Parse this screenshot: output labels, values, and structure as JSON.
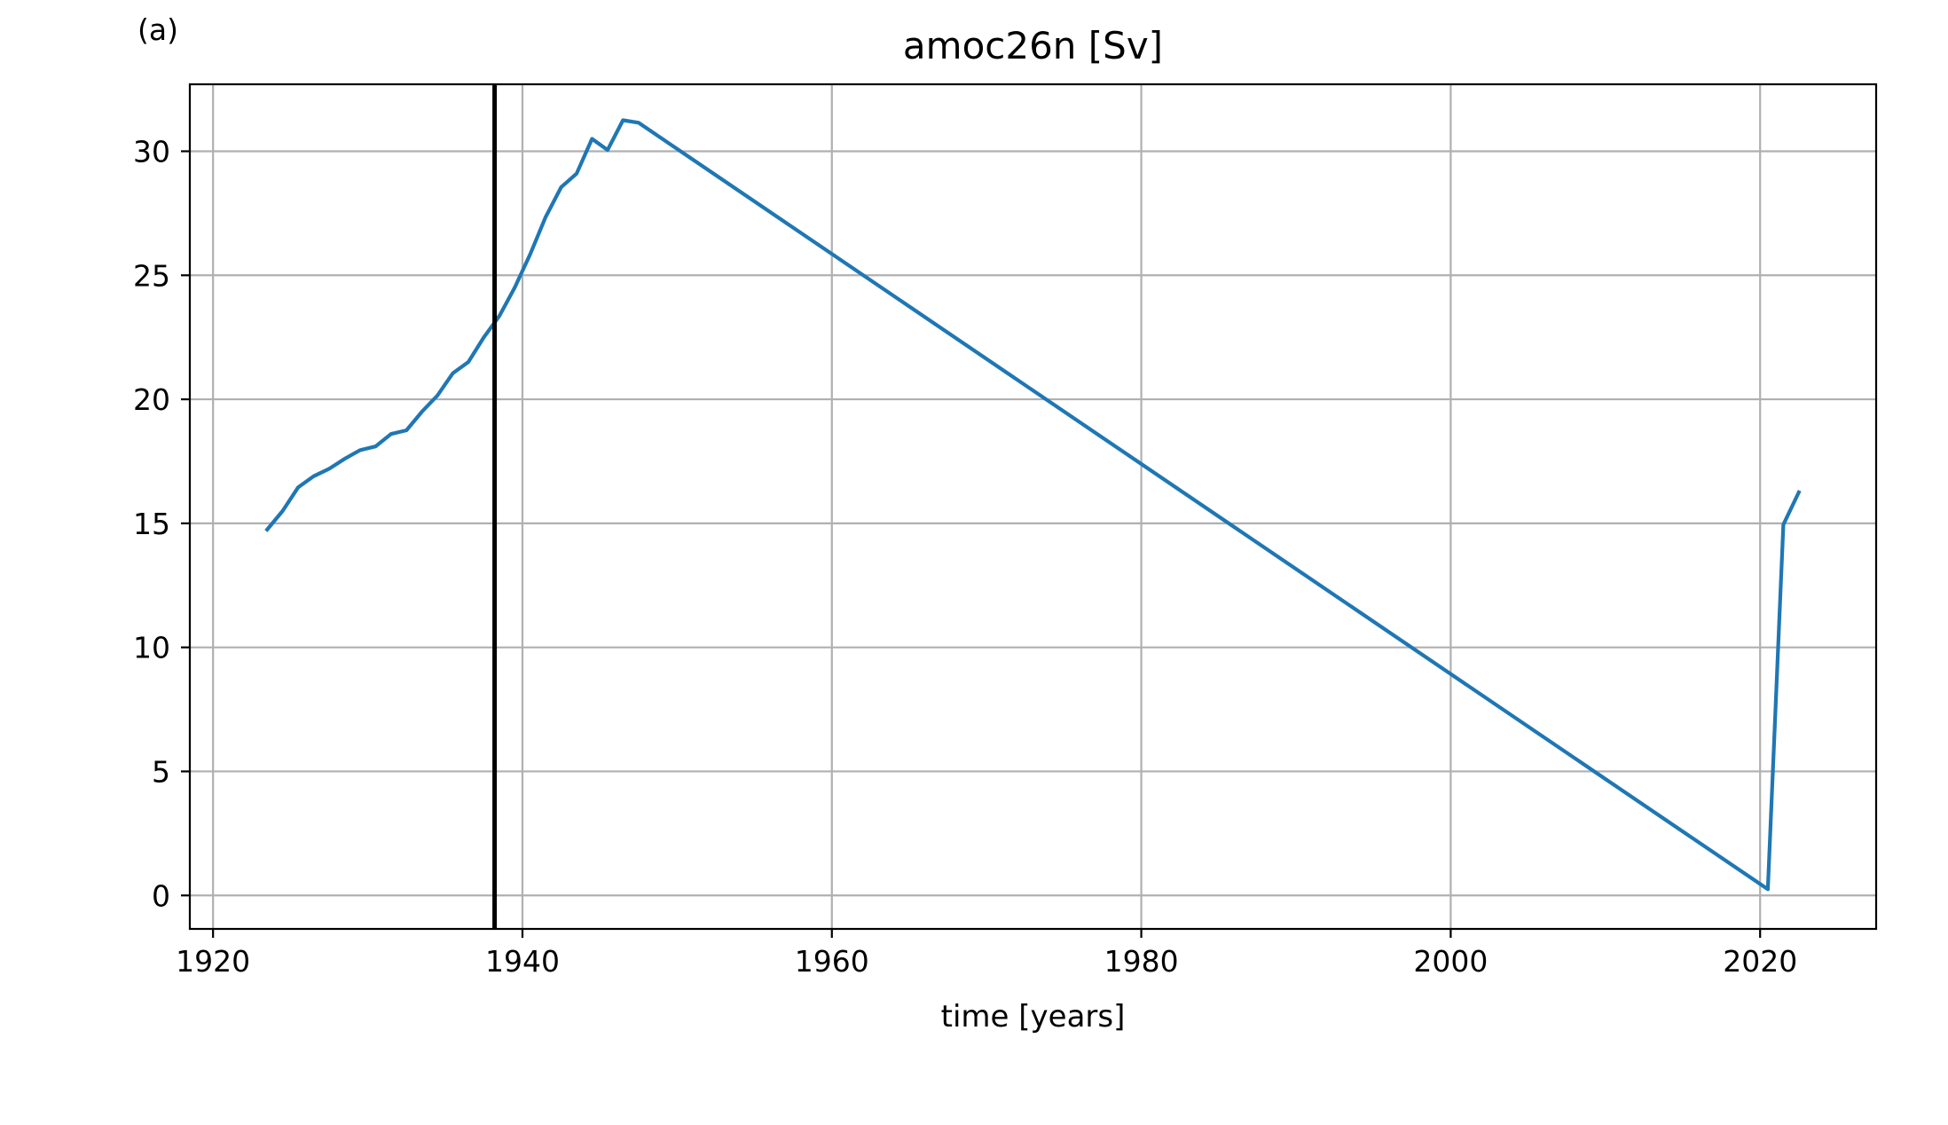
{
  "chart_data": {
    "type": "line",
    "panel_label": "(a)",
    "title": "amoc26n [Sv]",
    "xlabel": "time [years]",
    "ylabel": "",
    "xlim": [
      1918.5,
      2027.5
    ],
    "ylim": [
      -1.35,
      32.7
    ],
    "xticks": [
      1920,
      1940,
      1960,
      1980,
      2000,
      2020
    ],
    "yticks": [
      0,
      5,
      10,
      15,
      20,
      25,
      30
    ],
    "grid": true,
    "legend": "none",
    "series": [
      {
        "color": "#1f77b4",
        "x": [
          1923.5,
          1924.5,
          1925.5,
          1926.5,
          1927.5,
          1928.5,
          1929.5,
          1930.5,
          1931.5,
          1932.5,
          1933.5,
          1934.5,
          1935.5,
          1936.5,
          1937.5,
          1938.5,
          1939.5,
          1940.5,
          1941.5,
          1942.5,
          1943.5,
          1944.5,
          1945.5,
          1946.5,
          1947.5,
          2020.5,
          2021.5,
          2022.5
        ],
        "y": [
          14.75,
          15.5,
          16.45,
          16.9,
          17.2,
          17.6,
          17.95,
          18.1,
          18.6,
          18.75,
          19.5,
          20.15,
          21.05,
          21.5,
          22.5,
          23.35,
          24.5,
          25.85,
          27.35,
          28.55,
          29.1,
          30.5,
          30.05,
          31.25,
          31.15,
          0.25,
          14.95,
          16.25
        ]
      }
    ],
    "vertical_lines": [
      {
        "x": 1938.2,
        "color": "#000000"
      }
    ]
  }
}
